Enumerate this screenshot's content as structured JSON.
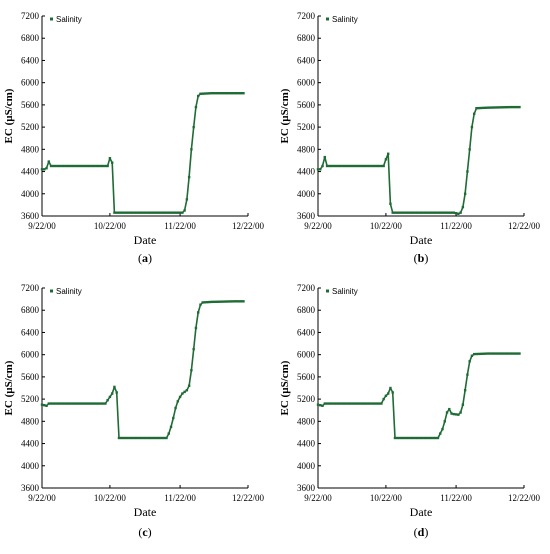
{
  "chart_data": [
    {
      "type": "line",
      "panel_label": "(a)",
      "label_open": "(",
      "label_letter": "a",
      "label_close": ")",
      "xlabel": "Date",
      "ylabel": "EC (µS/cm)",
      "legend": "Salinity",
      "legend_position": "top-left",
      "xlim": [
        0,
        91
      ],
      "ylim": [
        3600,
        7200
      ],
      "yticks": [
        3600,
        4000,
        4400,
        4800,
        5200,
        5600,
        6000,
        6400,
        6800,
        7200
      ],
      "xticks": [
        {
          "label": "9/22/00",
          "day": 0
        },
        {
          "label": "10/22/00",
          "day": 30
        },
        {
          "label": "11/22/00",
          "day": 61
        },
        {
          "label": "12/22/00",
          "day": 91
        }
      ],
      "grid": false,
      "series": [
        {
          "name": "Salinity",
          "color": "#1f6b35",
          "points": [
            [
              0,
              4440
            ],
            [
              1,
              4440
            ],
            [
              2,
              4460
            ],
            [
              3,
              4580
            ],
            [
              4,
              4500
            ],
            [
              5,
              4500
            ],
            [
              10,
              4500
            ],
            [
              20,
              4500
            ],
            [
              29,
              4500
            ],
            [
              30,
              4640
            ],
            [
              31,
              4560
            ],
            [
              32,
              3660
            ],
            [
              40,
              3660
            ],
            [
              50,
              3660
            ],
            [
              60,
              3660
            ],
            [
              62,
              3660
            ],
            [
              63,
              3700
            ],
            [
              64,
              3900
            ],
            [
              65,
              4300
            ],
            [
              66,
              4800
            ],
            [
              67,
              5200
            ],
            [
              68,
              5560
            ],
            [
              69,
              5760
            ],
            [
              70,
              5800
            ],
            [
              75,
              5810
            ],
            [
              85,
              5810
            ],
            [
              89,
              5810
            ]
          ]
        }
      ]
    },
    {
      "type": "line",
      "panel_label": "(b)",
      "label_open": "(",
      "label_letter": "b",
      "label_close": ")",
      "xlabel": "Date",
      "ylabel": "EC (µS/cm)",
      "legend": "Salinity",
      "legend_position": "top-left",
      "xlim": [
        0,
        91
      ],
      "ylim": [
        3600,
        7200
      ],
      "yticks": [
        3600,
        4000,
        4400,
        4800,
        5200,
        5600,
        6000,
        6400,
        6800,
        7200
      ],
      "xticks": [
        {
          "label": "9/22/00",
          "day": 0
        },
        {
          "label": "10/22/00",
          "day": 30
        },
        {
          "label": "11/22/00",
          "day": 61
        },
        {
          "label": "12/22/00",
          "day": 91
        }
      ],
      "grid": false,
      "series": [
        {
          "name": "Salinity",
          "color": "#1f6b35",
          "points": [
            [
              0,
              4440
            ],
            [
              1,
              4440
            ],
            [
              2,
              4500
            ],
            [
              3,
              4660
            ],
            [
              4,
              4500
            ],
            [
              5,
              4500
            ],
            [
              10,
              4500
            ],
            [
              20,
              4500
            ],
            [
              29,
              4500
            ],
            [
              30,
              4620
            ],
            [
              31,
              4720
            ],
            [
              32,
              3820
            ],
            [
              33,
              3660
            ],
            [
              40,
              3660
            ],
            [
              50,
              3660
            ],
            [
              60,
              3660
            ],
            [
              62,
              3640
            ],
            [
              63,
              3660
            ],
            [
              64,
              3760
            ],
            [
              65,
              4000
            ],
            [
              66,
              4400
            ],
            [
              67,
              4800
            ],
            [
              68,
              5200
            ],
            [
              69,
              5440
            ],
            [
              70,
              5540
            ],
            [
              75,
              5550
            ],
            [
              85,
              5560
            ],
            [
              89,
              5560
            ]
          ]
        }
      ]
    },
    {
      "type": "line",
      "panel_label": "(c)",
      "label_open": "(",
      "label_letter": "c",
      "label_close": ")",
      "xlabel": "Date",
      "ylabel": "EC (µS/cm)",
      "legend": "Salinity",
      "legend_position": "top-left",
      "xlim": [
        0,
        91
      ],
      "ylim": [
        3600,
        7200
      ],
      "yticks": [
        3600,
        4000,
        4400,
        4800,
        5200,
        5600,
        6000,
        6400,
        6800,
        7200
      ],
      "xticks": [
        {
          "label": "9/22/00",
          "day": 0
        },
        {
          "label": "10/22/00",
          "day": 30
        },
        {
          "label": "11/22/00",
          "day": 61
        },
        {
          "label": "12/22/00",
          "day": 91
        }
      ],
      "grid": false,
      "series": [
        {
          "name": "Salinity",
          "color": "#1f6b35",
          "points": [
            [
              0,
              5100
            ],
            [
              1,
              5090
            ],
            [
              2,
              5080
            ],
            [
              3,
              5120
            ],
            [
              10,
              5120
            ],
            [
              20,
              5120
            ],
            [
              28,
              5120
            ],
            [
              29,
              5180
            ],
            [
              30,
              5240
            ],
            [
              31,
              5300
            ],
            [
              32,
              5420
            ],
            [
              33,
              5320
            ],
            [
              34,
              4500
            ],
            [
              40,
              4500
            ],
            [
              50,
              4500
            ],
            [
              55,
              4500
            ],
            [
              56,
              4580
            ],
            [
              57,
              4700
            ],
            [
              58,
              4860
            ],
            [
              59,
              5040
            ],
            [
              60,
              5160
            ],
            [
              61,
              5240
            ],
            [
              62,
              5300
            ],
            [
              63,
              5330
            ],
            [
              64,
              5360
            ],
            [
              65,
              5440
            ],
            [
              66,
              5720
            ],
            [
              67,
              6100
            ],
            [
              68,
              6480
            ],
            [
              69,
              6760
            ],
            [
              70,
              6900
            ],
            [
              71,
              6940
            ],
            [
              75,
              6950
            ],
            [
              85,
              6960
            ],
            [
              89,
              6960
            ]
          ]
        }
      ]
    },
    {
      "type": "line",
      "panel_label": "(d)",
      "label_open": "(",
      "label_letter": "d",
      "label_close": ")",
      "xlabel": "Date",
      "ylabel": "EC (µS/cm)",
      "legend": "Salinity",
      "legend_position": "top-left",
      "xlim": [
        0,
        91
      ],
      "ylim": [
        3600,
        7200
      ],
      "yticks": [
        3600,
        4000,
        4400,
        4800,
        5200,
        5600,
        6000,
        6400,
        6800,
        7200
      ],
      "xticks": [
        {
          "label": "9/22/00",
          "day": 0
        },
        {
          "label": "10/22/00",
          "day": 30
        },
        {
          "label": "11/22/00",
          "day": 61
        },
        {
          "label": "12/22/00",
          "day": 91
        }
      ],
      "grid": false,
      "series": [
        {
          "name": "Salinity",
          "color": "#1f6b35",
          "points": [
            [
              0,
              5100
            ],
            [
              1,
              5090
            ],
            [
              2,
              5080
            ],
            [
              3,
              5120
            ],
            [
              10,
              5120
            ],
            [
              20,
              5120
            ],
            [
              28,
              5120
            ],
            [
              29,
              5200
            ],
            [
              30,
              5260
            ],
            [
              31,
              5300
            ],
            [
              32,
              5400
            ],
            [
              33,
              5320
            ],
            [
              34,
              4500
            ],
            [
              40,
              4500
            ],
            [
              50,
              4500
            ],
            [
              53,
              4500
            ],
            [
              54,
              4580
            ],
            [
              55,
              4660
            ],
            [
              56,
              4800
            ],
            [
              57,
              4960
            ],
            [
              58,
              5020
            ],
            [
              59,
              4940
            ],
            [
              60,
              4930
            ],
            [
              62,
              4920
            ],
            [
              63,
              4960
            ],
            [
              64,
              5100
            ],
            [
              65,
              5360
            ],
            [
              66,
              5640
            ],
            [
              67,
              5880
            ],
            [
              68,
              5980
            ],
            [
              69,
              6010
            ],
            [
              75,
              6020
            ],
            [
              85,
              6020
            ],
            [
              89,
              6020
            ]
          ]
        }
      ]
    }
  ]
}
